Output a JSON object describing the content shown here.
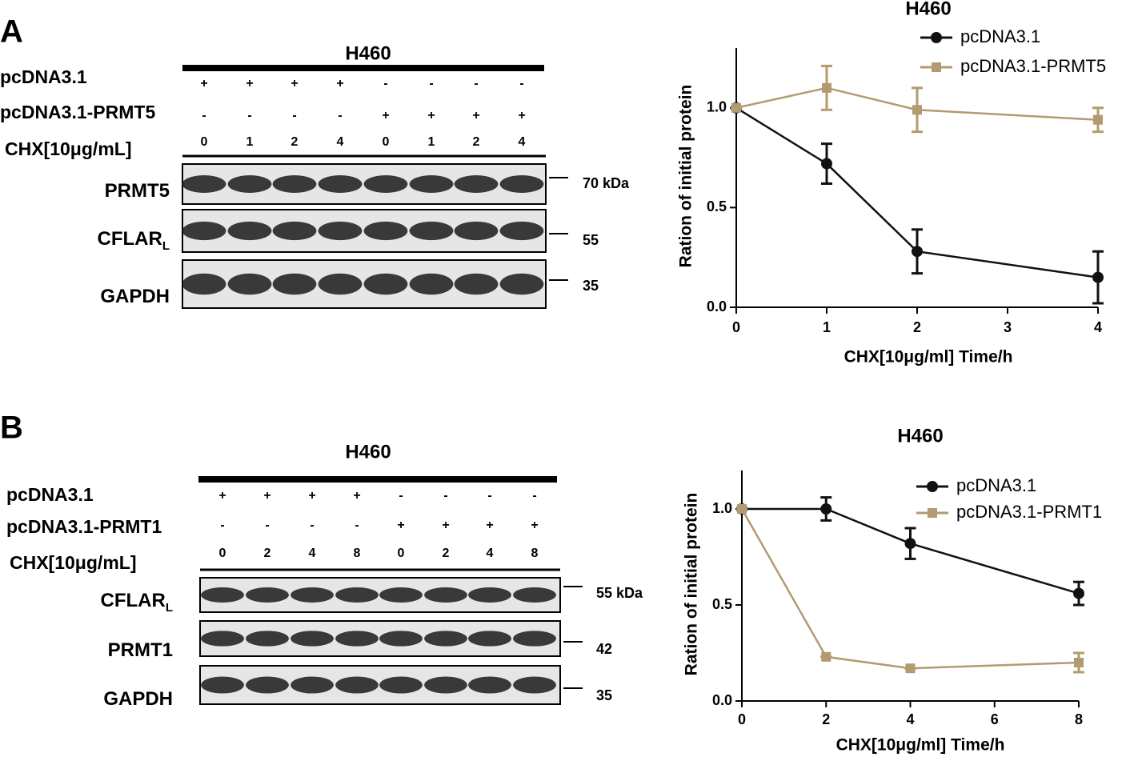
{
  "blots": [
    {
      "panel": "A",
      "cell": "H460",
      "rows": [
        {
          "label": "pcDNA3.1",
          "lanes": [
            "+",
            "+",
            "+",
            "+",
            "-",
            "-",
            "-",
            "-"
          ]
        },
        {
          "label": "pcDNA3.1-PRMT5",
          "lanes": [
            "-",
            "-",
            "-",
            "-",
            "+",
            "+",
            "+",
            "+"
          ]
        },
        {
          "label": "CHX[10μg/mL]",
          "lanes": [
            "0",
            "1",
            "2",
            "4",
            "0",
            "1",
            "2",
            "4"
          ]
        }
      ],
      "bands": [
        {
          "label": "PRMT5",
          "marker": "70 kDa"
        },
        {
          "label": "CFLAR",
          "sub": "L",
          "marker": "55"
        },
        {
          "label": "GAPDH",
          "marker": "35"
        }
      ]
    },
    {
      "panel": "B",
      "cell": "H460",
      "rows": [
        {
          "label": "pcDNA3.1",
          "lanes": [
            "+",
            "+",
            "+",
            "+",
            "-",
            "-",
            "-",
            "-"
          ]
        },
        {
          "label": "pcDNA3.1-PRMT1",
          "lanes": [
            "-",
            "-",
            "-",
            "-",
            "+",
            "+",
            "+",
            "+"
          ]
        },
        {
          "label": "CHX[10μg/mL]",
          "lanes": [
            "0",
            "2",
            "4",
            "8",
            "0",
            "2",
            "4",
            "8"
          ]
        }
      ],
      "bands": [
        {
          "label": "CFLAR",
          "sub": "L",
          "marker": "55 kDa"
        },
        {
          "label": "PRMT1",
          "marker": "42"
        },
        {
          "label": "GAPDH",
          "marker": "35"
        }
      ]
    }
  ],
  "chart_data": [
    {
      "type": "line",
      "title": "H460",
      "y_label": "Ration of initial protein",
      "x_label": "CHX[10μg/ml] Time/h",
      "x": [
        0,
        1,
        2,
        4
      ],
      "xlim": [
        0,
        4
      ],
      "xticks": [
        0,
        1,
        2,
        3,
        4
      ],
      "ylim": [
        0,
        1.3
      ],
      "yticks": [
        {
          "value": 0,
          "label": "0.0"
        },
        {
          "value": 0.5,
          "label": "0.5"
        },
        {
          "value": 1,
          "label": "1.0"
        }
      ],
      "series": [
        {
          "name": "pcDNA3.1",
          "color": "#111111",
          "marker": "circle",
          "values": [
            1.0,
            0.72,
            0.28,
            0.15
          ],
          "errors": [
            0,
            0.1,
            0.11,
            0.13
          ]
        },
        {
          "name": "pcDNA3.1-PRMT5",
          "color": "#b29b72",
          "marker": "square",
          "values": [
            1.0,
            1.1,
            0.99,
            0.94
          ],
          "errors": [
            0,
            0.11,
            0.11,
            0.06
          ]
        }
      ]
    },
    {
      "type": "line",
      "title": "H460",
      "y_label": "Ration of initial protein",
      "x_label": "CHX[10μg/ml] Time/h",
      "x": [
        0,
        2,
        4,
        8
      ],
      "xlim": [
        0,
        8
      ],
      "xticks": [
        0,
        2,
        4,
        6,
        8
      ],
      "ylim": [
        0,
        1.2
      ],
      "yticks": [
        {
          "value": 0,
          "label": "0.0"
        },
        {
          "value": 0.5,
          "label": "0.5"
        },
        {
          "value": 1,
          "label": "1.0"
        }
      ],
      "series": [
        {
          "name": "pcDNA3.1",
          "color": "#111111",
          "marker": "circle",
          "values": [
            1.0,
            1.0,
            0.82,
            0.56
          ],
          "errors": [
            0,
            0.06,
            0.08,
            0.06
          ]
        },
        {
          "name": "pcDNA3.1-PRMT1",
          "color": "#b29b72",
          "marker": "square",
          "values": [
            1.0,
            0.23,
            0.17,
            0.2
          ],
          "errors": [
            0,
            0,
            0,
            0.05
          ]
        }
      ]
    }
  ]
}
